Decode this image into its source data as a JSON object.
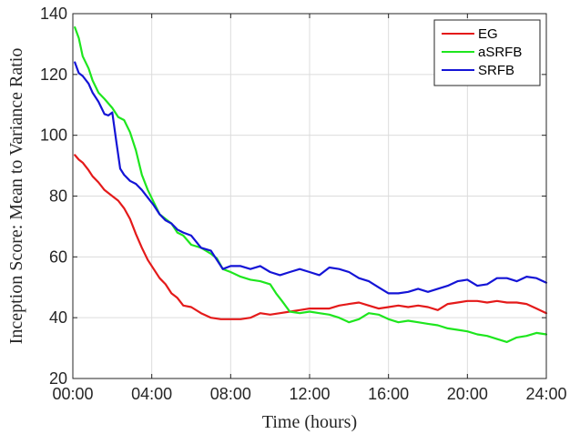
{
  "chart_data": {
    "type": "line",
    "title": "",
    "xlabel": "Time (hours)",
    "ylabel": "Inception Score: Mean to Variance Ratio",
    "xlim": [
      0,
      24
    ],
    "ylim": [
      20,
      140
    ],
    "xticks": [
      0,
      4,
      8,
      12,
      16,
      20,
      24
    ],
    "xtick_labels": [
      "00:00",
      "04:00",
      "08:00",
      "12:00",
      "16:00",
      "20:00",
      "24:00"
    ],
    "yticks": [
      20,
      40,
      60,
      80,
      100,
      120,
      140
    ],
    "ytick_labels": [
      "20",
      "40",
      "60",
      "80",
      "100",
      "120",
      "140"
    ],
    "grid": true,
    "legend_position": "top-right",
    "series": [
      {
        "name": "EG",
        "color": "#e41a1a",
        "x": [
          0.1,
          0.3,
          0.5,
          0.8,
          1.0,
          1.3,
          1.6,
          2.0,
          2.3,
          2.6,
          2.9,
          3.2,
          3.5,
          3.8,
          4.1,
          4.4,
          4.7,
          5.0,
          5.3,
          5.6,
          6.0,
          6.5,
          7.0,
          7.5,
          8.0,
          8.5,
          9.0,
          9.5,
          10.0,
          10.5,
          11.0,
          11.5,
          12.0,
          12.5,
          13.0,
          13.5,
          14.0,
          14.5,
          15.0,
          15.5,
          16.0,
          16.5,
          17.0,
          17.5,
          18.0,
          18.5,
          19.0,
          19.5,
          20.0,
          20.5,
          21.0,
          21.5,
          22.0,
          22.5,
          23.0,
          23.5,
          24.0
        ],
        "y": [
          93.5,
          92,
          91,
          88.5,
          86.5,
          84.5,
          82,
          80,
          78.5,
          76,
          72.5,
          67.5,
          63,
          59,
          56,
          53,
          51,
          48,
          46.5,
          44,
          43.5,
          41.5,
          40,
          39.5,
          39.5,
          39.5,
          40,
          41.5,
          41,
          41.5,
          42,
          42.5,
          43,
          43,
          43,
          44,
          44.5,
          45,
          44,
          43,
          43.5,
          44,
          43.5,
          44,
          43.5,
          42.5,
          44.5,
          45,
          45.5,
          45.5,
          45,
          45.5,
          45,
          45,
          44.5,
          43,
          41.5
        ]
      },
      {
        "name": "aSRFB",
        "color": "#1ee61e",
        "x": [
          0.1,
          0.3,
          0.5,
          0.8,
          1.0,
          1.3,
          1.6,
          2.0,
          2.3,
          2.6,
          2.9,
          3.2,
          3.5,
          3.8,
          4.1,
          4.4,
          4.7,
          5.0,
          5.3,
          5.6,
          6.0,
          6.5,
          7.0,
          7.3,
          7.6,
          8.0,
          8.5,
          9.0,
          9.5,
          10.0,
          10.3,
          10.6,
          11.0,
          11.5,
          12.0,
          12.5,
          13.0,
          13.5,
          14.0,
          14.5,
          15.0,
          15.5,
          16.0,
          16.5,
          17.0,
          17.5,
          18.0,
          18.5,
          19.0,
          19.5,
          20.0,
          20.5,
          21.0,
          21.5,
          22.0,
          22.5,
          23.0,
          23.5,
          24.0
        ],
        "y": [
          135.5,
          132,
          126,
          122,
          118,
          114,
          112,
          109,
          106,
          105,
          101,
          95,
          87,
          82,
          78,
          74,
          72.5,
          71,
          68,
          67,
          64,
          63,
          61,
          59.5,
          56,
          55,
          53.5,
          52.5,
          52,
          51,
          48,
          45.5,
          42,
          41.5,
          42,
          41.5,
          41,
          40,
          38.5,
          39.5,
          41.5,
          41,
          39.5,
          38.5,
          39,
          38.5,
          38,
          37.5,
          36.5,
          36,
          35.5,
          34.5,
          34,
          33,
          32,
          33.5,
          34,
          35,
          34.5
        ]
      },
      {
        "name": "SRFB",
        "color": "#1414d6",
        "x": [
          0.1,
          0.3,
          0.5,
          0.8,
          1.0,
          1.3,
          1.6,
          1.8,
          2.0,
          2.2,
          2.4,
          2.6,
          2.9,
          3.2,
          3.5,
          3.8,
          4.1,
          4.4,
          4.7,
          5.0,
          5.3,
          5.6,
          6.0,
          6.5,
          7.0,
          7.3,
          7.6,
          8.0,
          8.5,
          9.0,
          9.5,
          10.0,
          10.5,
          11.0,
          11.5,
          12.0,
          12.5,
          13.0,
          13.5,
          14.0,
          14.5,
          15.0,
          15.5,
          16.0,
          16.5,
          17.0,
          17.5,
          18.0,
          18.5,
          19.0,
          19.5,
          20.0,
          20.5,
          21.0,
          21.5,
          22.0,
          22.5,
          23.0,
          23.5,
          24.0
        ],
        "y": [
          124,
          120.5,
          119.5,
          117,
          114,
          111,
          107,
          106.5,
          107.5,
          98,
          89,
          87,
          85,
          84,
          82,
          79.5,
          77,
          74,
          72,
          71,
          69,
          68,
          67,
          63,
          62,
          59,
          56,
          57,
          57,
          56,
          57,
          55,
          54,
          55,
          56,
          55,
          54,
          56.5,
          56,
          55,
          53,
          52,
          50,
          48,
          48,
          48.5,
          49.5,
          48.5,
          49.5,
          50.5,
          52,
          52.5,
          50.5,
          51,
          53,
          53,
          52,
          53.5,
          53,
          51.5
        ]
      }
    ]
  }
}
